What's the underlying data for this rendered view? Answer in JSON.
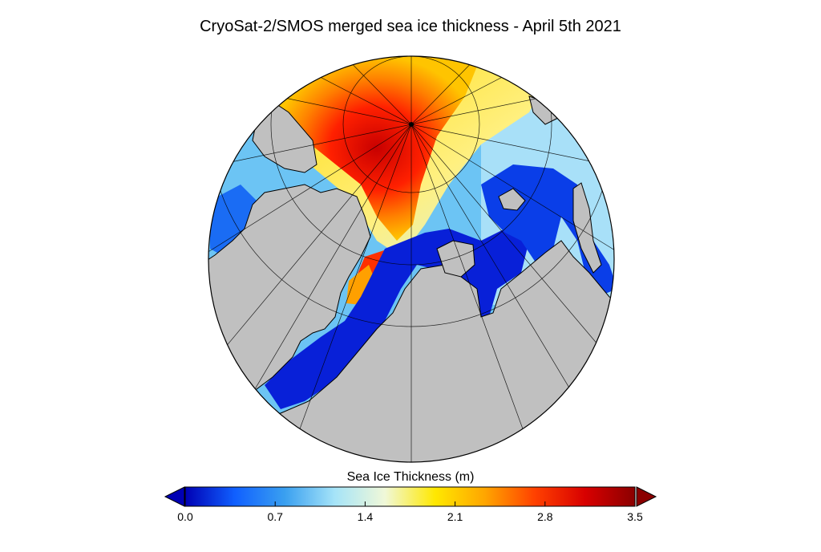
{
  "title": "CryoSat-2/SMOS merged sea ice thickness - April 5th 2021",
  "colorbar": {
    "label": "Sea Ice Thickness (m)",
    "min": 0.0,
    "max": 3.5,
    "ticks": [
      "0.0",
      "0.7",
      "1.4",
      "2.1",
      "2.8",
      "3.5"
    ],
    "extend": "both",
    "colors": [
      "#0000b4",
      "#1060ff",
      "#3aa0f0",
      "#a6e4f8",
      "#f0f8d8",
      "#ffe800",
      "#ffa500",
      "#ff4000",
      "#d80000",
      "#8b0000"
    ]
  },
  "map": {
    "projection": "north-polar-stereographic",
    "land_color": "#c0c0c0",
    "coastline_color": "#000000",
    "graticule": "on"
  }
}
